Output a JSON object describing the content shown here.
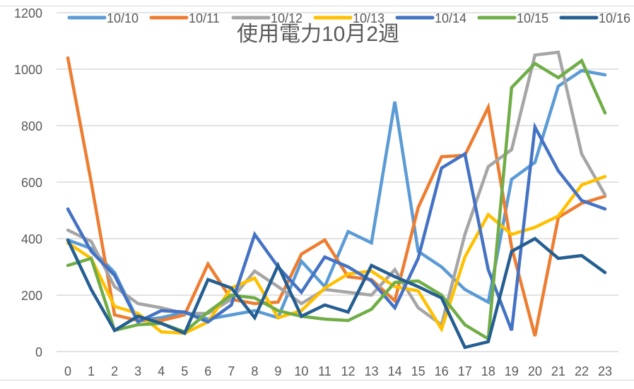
{
  "chart_data": {
    "type": "line",
    "title": "使用電力10月2週",
    "xlabel": "",
    "ylabel": "",
    "ylim": [
      0,
      1200
    ],
    "yticks": [
      0,
      200,
      400,
      600,
      800,
      1000,
      1200
    ],
    "grid": true,
    "legend_position": "top",
    "categories": [
      "0",
      "1",
      "2",
      "3",
      "4",
      "5",
      "6",
      "7",
      "8",
      "9",
      "10",
      "11",
      "12",
      "13",
      "14",
      "15",
      "16",
      "17",
      "18",
      "19",
      "20",
      "21",
      "22",
      "23"
    ],
    "series": [
      {
        "name": "10/10",
        "color": "#5B9BD5",
        "values": [
          395,
          365,
          280,
          110,
          120,
          140,
          115,
          130,
          145,
          120,
          320,
          230,
          425,
          385,
          885,
          355,
          300,
          220,
          175,
          610,
          670,
          940,
          995,
          980
        ]
      },
      {
        "name": "10/11",
        "color": "#ED7D31",
        "values": [
          1040,
          600,
          130,
          110,
          110,
          130,
          310,
          185,
          170,
          175,
          345,
          395,
          265,
          255,
          180,
          510,
          690,
          695,
          865,
          370,
          55,
          475,
          525,
          550
        ]
      },
      {
        "name": "10/12",
        "color": "#A5A5A5",
        "values": [
          430,
          390,
          230,
          170,
          155,
          135,
          135,
          185,
          285,
          230,
          170,
          220,
          210,
          200,
          290,
          155,
          95,
          415,
          655,
          715,
          1050,
          1060,
          700,
          555
        ]
      },
      {
        "name": "10/13",
        "color": "#FFC000",
        "values": [
          385,
          330,
          160,
          135,
          70,
          65,
          105,
          225,
          260,
          120,
          145,
          225,
          275,
          285,
          230,
          215,
          80,
          335,
          485,
          415,
          440,
          480,
          590,
          620
        ]
      },
      {
        "name": "10/14",
        "color": "#4472C4",
        "values": [
          505,
          355,
          270,
          105,
          145,
          140,
          105,
          165,
          415,
          300,
          210,
          335,
          300,
          250,
          155,
          330,
          650,
          700,
          290,
          75,
          795,
          640,
          535,
          505
        ]
      },
      {
        "name": "10/15",
        "color": "#70AD47",
        "values": [
          305,
          330,
          75,
          95,
          100,
          70,
          140,
          200,
          190,
          145,
          125,
          115,
          110,
          150,
          245,
          250,
          200,
          95,
          45,
          935,
          1020,
          970,
          1030,
          845
        ]
      },
      {
        "name": "10/16",
        "color": "#255E91",
        "values": [
          395,
          220,
          75,
          125,
          100,
          65,
          255,
          225,
          120,
          305,
          125,
          165,
          140,
          305,
          265,
          230,
          190,
          15,
          35,
          355,
          400,
          330,
          340,
          280
        ]
      }
    ]
  }
}
